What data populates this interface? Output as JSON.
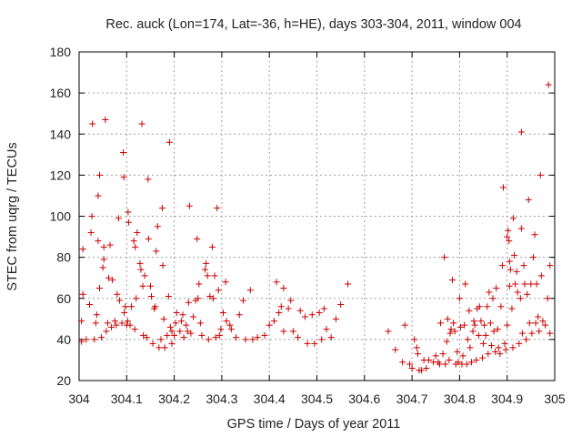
{
  "chart_data": {
    "type": "scatter",
    "title": "Rec. auck (Lon=174, Lat=-36, h=HE), days 303-304, 2011, window 004",
    "xlabel": "GPS time / Days of year 2011",
    "ylabel": "STEC from uqrg / TECUs",
    "xlim": [
      304.0,
      305.0
    ],
    "ylim": [
      20,
      180
    ],
    "xticks": [
      "304",
      "304.1",
      "304.2",
      "304.3",
      "304.4",
      "304.5",
      "304.6",
      "304.7",
      "304.8",
      "304.9",
      "305"
    ],
    "yticks": [
      "20",
      "40",
      "60",
      "80",
      "100",
      "120",
      "140",
      "160",
      "180"
    ],
    "grid": true,
    "marker": "+",
    "marker_color": "#cc0000",
    "series": [
      {
        "points": [
          [
            304.005,
            39
          ],
          [
            304.005,
            49
          ],
          [
            304.008,
            62
          ],
          [
            304.008,
            84
          ],
          [
            304.015,
            40
          ],
          [
            304.022,
            57
          ],
          [
            304.025,
            92
          ],
          [
            304.027,
            100
          ],
          [
            304.028,
            145
          ],
          [
            304.032,
            40
          ],
          [
            304.035,
            48
          ],
          [
            304.037,
            52
          ],
          [
            304.04,
            88
          ],
          [
            304.04,
            110
          ],
          [
            304.043,
            65
          ],
          [
            304.043,
            120
          ],
          [
            304.047,
            41
          ],
          [
            304.05,
            75
          ],
          [
            304.052,
            79
          ],
          [
            304.052,
            85
          ],
          [
            304.055,
            147
          ],
          [
            304.057,
            44
          ],
          [
            304.06,
            48
          ],
          [
            304.062,
            70
          ],
          [
            304.065,
            86
          ],
          [
            304.068,
            46
          ],
          [
            304.07,
            69
          ],
          [
            304.075,
            49
          ],
          [
            304.078,
            47
          ],
          [
            304.08,
            62
          ],
          [
            304.083,
            99
          ],
          [
            304.085,
            59
          ],
          [
            304.09,
            48
          ],
          [
            304.093,
            131
          ],
          [
            304.094,
            119
          ],
          [
            304.095,
            53
          ],
          [
            304.097,
            56
          ],
          [
            304.1,
            47
          ],
          [
            304.102,
            49
          ],
          [
            304.103,
            102
          ],
          [
            304.104,
            97
          ],
          [
            304.107,
            47
          ],
          [
            304.11,
            56
          ],
          [
            304.115,
            88
          ],
          [
            304.117,
            45
          ],
          [
            304.118,
            85
          ],
          [
            304.12,
            60
          ],
          [
            304.122,
            92
          ],
          [
            304.128,
            77
          ],
          [
            304.13,
            74
          ],
          [
            304.132,
            145
          ],
          [
            304.134,
            66
          ],
          [
            304.135,
            42
          ],
          [
            304.138,
            71
          ],
          [
            304.142,
            41
          ],
          [
            304.145,
            118
          ],
          [
            304.146,
            89
          ],
          [
            304.15,
            66
          ],
          [
            304.152,
            61
          ],
          [
            304.155,
            38
          ],
          [
            304.158,
            55
          ],
          [
            304.16,
            56
          ],
          [
            304.162,
            83
          ],
          [
            304.165,
            95
          ],
          [
            304.168,
            36
          ],
          [
            304.172,
            40
          ],
          [
            304.175,
            104
          ],
          [
            304.176,
            76
          ],
          [
            304.178,
            50
          ],
          [
            304.18,
            36
          ],
          [
            304.185,
            42
          ],
          [
            304.188,
            61
          ],
          [
            304.19,
            136
          ],
          [
            304.192,
            46
          ],
          [
            304.195,
            44
          ],
          [
            304.195,
            38
          ],
          [
            304.2,
            42
          ],
          [
            304.203,
            48
          ],
          [
            304.205,
            53
          ],
          [
            304.212,
            44
          ],
          [
            304.215,
            49
          ],
          [
            304.218,
            52
          ],
          [
            304.22,
            41
          ],
          [
            304.225,
            47
          ],
          [
            304.228,
            44
          ],
          [
            304.23,
            58
          ],
          [
            304.232,
            105
          ],
          [
            304.235,
            43
          ],
          [
            304.24,
            51
          ],
          [
            304.245,
            59
          ],
          [
            304.248,
            89
          ],
          [
            304.25,
            60
          ],
          [
            304.252,
            67
          ],
          [
            304.255,
            48
          ],
          [
            304.258,
            42
          ],
          [
            304.265,
            74
          ],
          [
            304.267,
            77
          ],
          [
            304.27,
            71
          ],
          [
            304.272,
            40
          ],
          [
            304.275,
            61
          ],
          [
            304.28,
            85
          ],
          [
            304.282,
            60
          ],
          [
            304.285,
            71
          ],
          [
            304.287,
            41
          ],
          [
            304.29,
            104
          ],
          [
            304.293,
            64
          ],
          [
            304.295,
            42
          ],
          [
            304.298,
            45
          ],
          [
            304.303,
            53
          ],
          [
            304.308,
            68
          ],
          [
            304.31,
            49
          ],
          [
            304.317,
            47
          ],
          [
            304.32,
            45
          ],
          [
            304.33,
            41
          ],
          [
            304.337,
            52
          ],
          [
            304.345,
            59
          ],
          [
            304.35,
            40
          ],
          [
            304.36,
            64
          ],
          [
            304.365,
            40
          ],
          [
            304.375,
            41
          ],
          [
            304.39,
            42
          ],
          [
            304.4,
            47
          ],
          [
            304.41,
            49
          ],
          [
            304.415,
            68
          ],
          [
            304.42,
            53
          ],
          [
            304.425,
            56
          ],
          [
            304.43,
            65
          ],
          [
            304.43,
            44
          ],
          [
            304.44,
            55
          ],
          [
            304.445,
            59
          ],
          [
            304.45,
            44
          ],
          [
            304.46,
            41
          ],
          [
            304.465,
            54
          ],
          [
            304.475,
            51
          ],
          [
            304.48,
            38
          ],
          [
            304.49,
            52
          ],
          [
            304.495,
            38
          ],
          [
            304.505,
            53
          ],
          [
            304.51,
            40
          ],
          [
            304.515,
            55
          ],
          [
            304.52,
            45
          ],
          [
            304.53,
            41
          ],
          [
            304.54,
            50
          ],
          [
            304.55,
            57
          ],
          [
            304.565,
            67
          ],
          [
            304.65,
            44
          ],
          [
            304.665,
            35
          ],
          [
            304.68,
            29
          ],
          [
            304.685,
            47
          ],
          [
            304.695,
            28
          ],
          [
            304.7,
            26
          ],
          [
            304.705,
            40
          ],
          [
            304.71,
            36
          ],
          [
            304.712,
            33
          ],
          [
            304.715,
            25
          ],
          [
            304.72,
            25
          ],
          [
            304.725,
            30
          ],
          [
            304.73,
            26
          ],
          [
            304.735,
            30
          ],
          [
            304.745,
            29
          ],
          [
            304.75,
            32
          ],
          [
            304.755,
            29
          ],
          [
            304.758,
            28
          ],
          [
            304.76,
            48
          ],
          [
            304.765,
            33
          ],
          [
            304.768,
            80
          ],
          [
            304.77,
            28
          ],
          [
            304.773,
            39
          ],
          [
            304.775,
            50
          ],
          [
            304.778,
            30
          ],
          [
            304.78,
            43
          ],
          [
            304.782,
            45
          ],
          [
            304.785,
            69
          ],
          [
            304.787,
            48
          ],
          [
            304.79,
            44
          ],
          [
            304.792,
            28
          ],
          [
            304.795,
            34
          ],
          [
            304.797,
            29
          ],
          [
            304.8,
            60
          ],
          [
            304.802,
            46
          ],
          [
            304.805,
            28
          ],
          [
            304.807,
            32
          ],
          [
            304.81,
            47
          ],
          [
            304.812,
            67
          ],
          [
            304.815,
            28
          ],
          [
            304.817,
            40
          ],
          [
            304.82,
            54
          ],
          [
            304.822,
            36
          ],
          [
            304.825,
            29
          ],
          [
            304.828,
            44
          ],
          [
            304.83,
            49
          ],
          [
            304.832,
            47
          ],
          [
            304.835,
            30
          ],
          [
            304.837,
            55
          ],
          [
            304.84,
            42
          ],
          [
            304.842,
            56
          ],
          [
            304.845,
            49
          ],
          [
            304.848,
            31
          ],
          [
            304.85,
            38
          ],
          [
            304.852,
            47
          ],
          [
            304.855,
            42
          ],
          [
            304.858,
            56
          ],
          [
            304.86,
            33
          ],
          [
            304.862,
            63
          ],
          [
            304.865,
            48
          ],
          [
            304.867,
            37
          ],
          [
            304.87,
            60
          ],
          [
            304.872,
            44
          ],
          [
            304.875,
            34
          ],
          [
            304.877,
            65
          ],
          [
            304.88,
            45
          ],
          [
            304.882,
            36
          ],
          [
            304.885,
            33
          ],
          [
            304.887,
            56
          ],
          [
            304.89,
            76
          ],
          [
            304.892,
            114
          ],
          [
            304.895,
            38
          ],
          [
            304.897,
            35
          ],
          [
            304.9,
            47
          ],
          [
            304.9,
            90
          ],
          [
            304.902,
            93
          ],
          [
            304.904,
            88
          ],
          [
            304.905,
            78
          ],
          [
            304.905,
            66
          ],
          [
            304.907,
            74
          ],
          [
            304.91,
            55
          ],
          [
            304.912,
            36
          ],
          [
            304.913,
            99
          ],
          [
            304.915,
            81
          ],
          [
            304.917,
            67
          ],
          [
            304.92,
            73
          ],
          [
            304.922,
            63
          ],
          [
            304.925,
            38
          ],
          [
            304.928,
            60
          ],
          [
            304.93,
            141
          ],
          [
            304.93,
            94
          ],
          [
            304.932,
            43
          ],
          [
            304.935,
            76
          ],
          [
            304.937,
            67
          ],
          [
            304.94,
            40
          ],
          [
            304.942,
            62
          ],
          [
            304.945,
            108
          ],
          [
            304.947,
            48
          ],
          [
            304.95,
            67
          ],
          [
            304.952,
            43
          ],
          [
            304.955,
            80
          ],
          [
            304.958,
            91
          ],
          [
            304.96,
            48
          ],
          [
            304.962,
            67
          ],
          [
            304.965,
            51
          ],
          [
            304.967,
            44
          ],
          [
            304.97,
            120
          ],
          [
            304.972,
            71
          ],
          [
            304.975,
            49
          ],
          [
            304.98,
            47
          ],
          [
            304.985,
            60
          ],
          [
            304.987,
            164
          ],
          [
            304.99,
            43
          ],
          [
            304.99,
            76
          ]
        ]
      }
    ]
  }
}
